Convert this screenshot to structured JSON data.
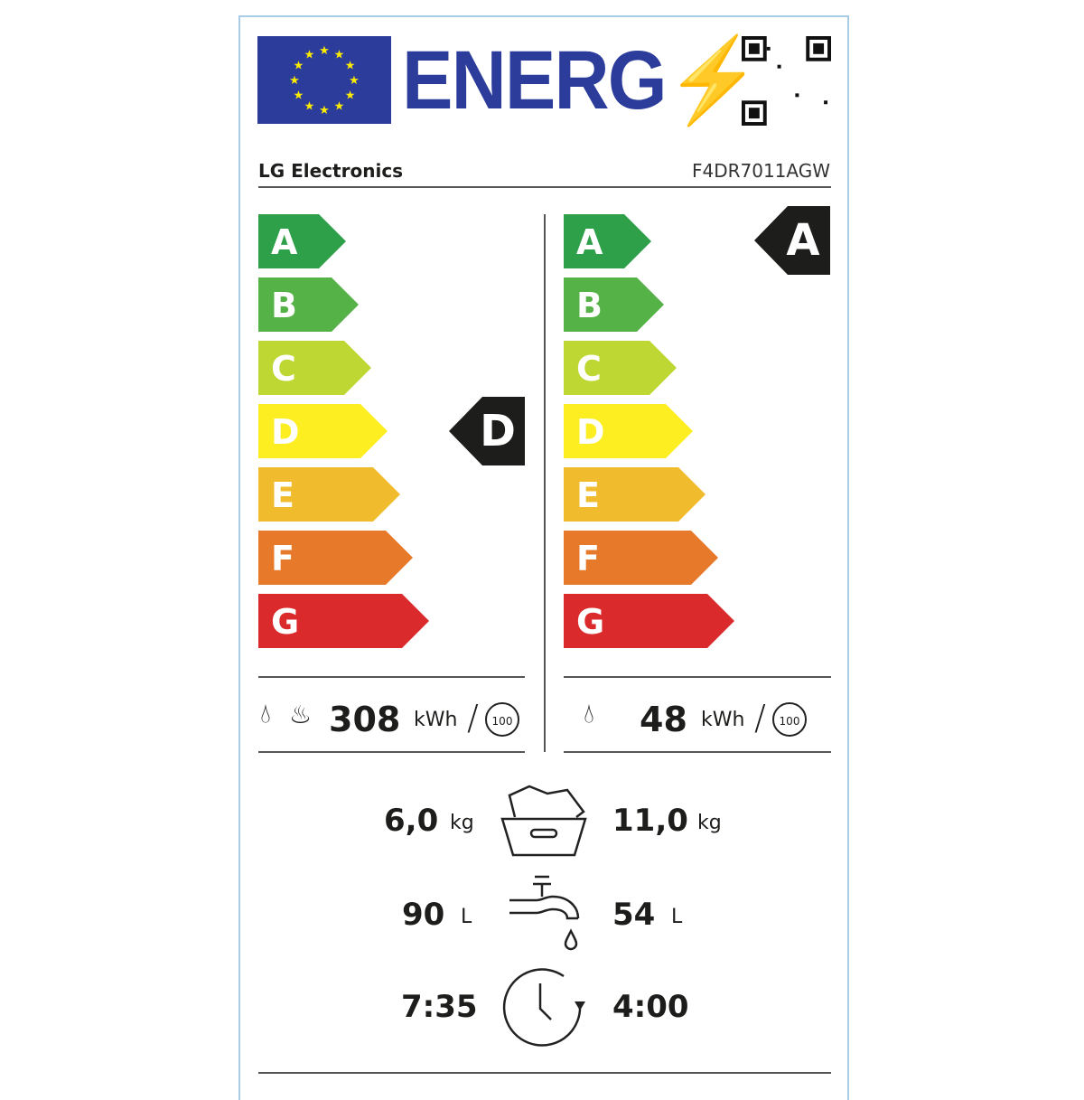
{
  "header": {
    "logo_text": "ENERG",
    "brand": "LG Electronics",
    "model": "F4DR7011AGW"
  },
  "scale": {
    "classes": [
      "A",
      "B",
      "C",
      "D",
      "E",
      "F",
      "G"
    ],
    "colors": [
      "#2fa04a",
      "#55b247",
      "#bfd733",
      "#fdee22",
      "#f0bb2d",
      "#e7792b",
      "#db2a2b"
    ]
  },
  "washdry": {
    "class": "D",
    "energy_value": "308",
    "energy_unit": "kWh",
    "cycles": "100"
  },
  "wash": {
    "class": "A",
    "energy_value": "48",
    "energy_unit": "kWh",
    "cycles": "100"
  },
  "capacity": {
    "washdry": "6,0",
    "wash": "11,0",
    "unit": "kg"
  },
  "water": {
    "washdry": "90",
    "wash": "54",
    "unit": "L"
  },
  "duration": {
    "washdry": "7:35",
    "wash": "4:00"
  }
}
